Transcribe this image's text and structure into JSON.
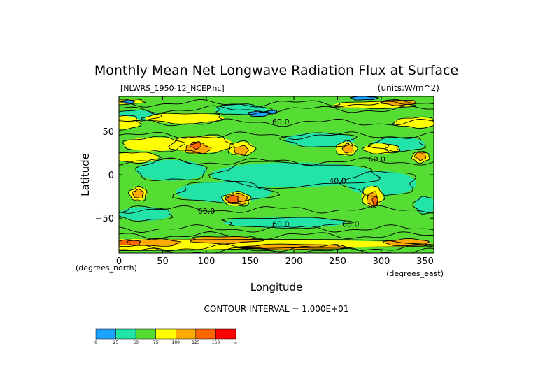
{
  "chart_data": {
    "type": "heatmap",
    "title": "Monthly Mean Net Longwave Radiation Flux at Surface",
    "file_label": "[NLWRS_1950-12_NCEP.nc]",
    "units_label": "(units:W/m^2)",
    "xlabel": "Longitude",
    "ylabel": "Latitude",
    "x_unit_label": "(degrees_east)",
    "y_unit_label": "(degrees_north)",
    "xlim": [
      0,
      360
    ],
    "ylim": [
      -90,
      90
    ],
    "x_ticks": [
      0,
      50,
      100,
      150,
      200,
      250,
      300,
      350
    ],
    "y_ticks": [
      -50,
      0,
      50
    ],
    "contour_interval_text": "CONTOUR INTERVAL = 1.000E+01",
    "contour_labels": [
      "60.0",
      "60.0",
      "60.0",
      "60.0",
      "60.0",
      "40.0"
    ],
    "colorbar": {
      "boundaries": [
        "0",
        "25",
        "50",
        "75",
        "100",
        "125",
        "150",
        "∞"
      ],
      "colors": [
        "#1ca3ff",
        "#22e3a8",
        "#55dd33",
        "#ffff00",
        "#ffaa00",
        "#ff6600",
        "#ff0000"
      ]
    },
    "field_colors": {
      "low": "#22e3a8",
      "mid": "#55dd33",
      "high": "#ffff00",
      "higher": "#ffaa00",
      "highest": "#ff6600",
      "peak": "#ff0000",
      "cold": "#1ca3ff"
    }
  }
}
